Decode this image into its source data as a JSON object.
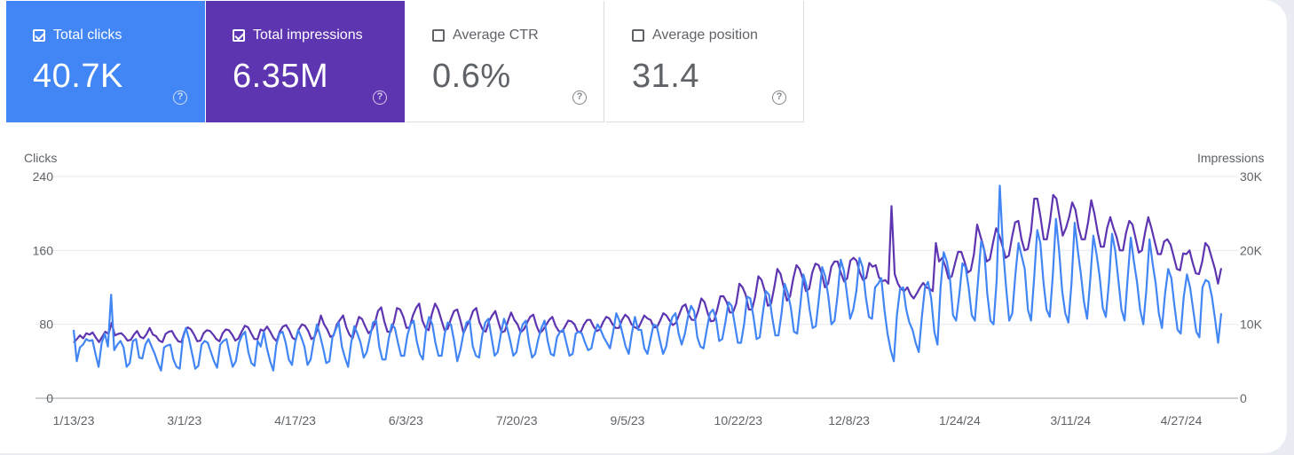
{
  "metrics": [
    {
      "label": "Total clicks",
      "value": "40.7K",
      "checked": true,
      "color": "#4285f4"
    },
    {
      "label": "Total impressions",
      "value": "6.35M",
      "checked": true,
      "color": "#5e35b1"
    },
    {
      "label": "Average CTR",
      "value": "0.6%",
      "checked": false,
      "color": "#ffffff"
    },
    {
      "label": "Average position",
      "value": "31.4",
      "checked": false,
      "color": "#ffffff"
    }
  ],
  "help_glyph": "?",
  "chart_data": {
    "type": "line",
    "x_start": "1/13/23",
    "x_end": "5/13/24",
    "x_tick_labels": [
      "1/13/23",
      "3/1/23",
      "4/17/23",
      "6/3/23",
      "7/20/23",
      "9/5/23",
      "10/22/23",
      "12/8/23",
      "1/24/24",
      "3/11/24",
      "4/27/24"
    ],
    "y_left_label": "Clicks",
    "y_left_ticks": [
      "0",
      "80",
      "160",
      "240"
    ],
    "y_left_range": [
      0,
      240
    ],
    "y_right_label": "Impressions",
    "y_right_ticks": [
      "0",
      "10K",
      "20K",
      "30K"
    ],
    "y_right_range": [
      0,
      30000
    ],
    "grid": true,
    "series": [
      {
        "name": "Clicks",
        "axis": "left",
        "color": "#4285f4",
        "values": [
          74,
          40,
          55,
          58,
          64,
          62,
          63,
          48,
          34,
          60,
          70,
          56,
          112,
          52,
          58,
          62,
          55,
          34,
          38,
          62,
          64,
          44,
          43,
          58,
          64,
          56,
          48,
          38,
          30,
          55,
          57,
          58,
          42,
          34,
          32,
          64,
          76,
          64,
          48,
          32,
          35,
          58,
          62,
          60,
          50,
          40,
          33,
          58,
          62,
          64,
          48,
          34,
          40,
          60,
          68,
          72,
          50,
          38,
          35,
          62,
          56,
          72,
          54,
          40,
          30,
          58,
          70,
          72,
          60,
          42,
          36,
          60,
          74,
          66,
          56,
          36,
          42,
          62,
          80,
          68,
          54,
          38,
          40,
          66,
          74,
          82,
          56,
          44,
          34,
          60,
          78,
          70,
          60,
          44,
          50,
          66,
          82,
          84,
          56,
          42,
          42,
          64,
          80,
          76,
          60,
          46,
          46,
          68,
          80,
          84,
          62,
          48,
          42,
          74,
          88,
          80,
          60,
          46,
          46,
          70,
          82,
          80,
          62,
          40,
          52,
          70,
          82,
          84,
          56,
          46,
          44,
          68,
          82,
          86,
          66,
          46,
          50,
          70,
          86,
          76,
          62,
          46,
          50,
          68,
          80,
          84,
          60,
          44,
          48,
          64,
          76,
          84,
          62,
          48,
          46,
          66,
          72,
          74,
          60,
          46,
          48,
          70,
          72,
          70,
          60,
          52,
          54,
          70,
          80,
          74,
          66,
          60,
          54,
          72,
          92,
          84,
          70,
          56,
          48,
          70,
          88,
          74,
          74,
          54,
          48,
          64,
          80,
          78,
          62,
          48,
          56,
          76,
          88,
          92,
          70,
          58,
          70,
          88,
          100,
          94,
          66,
          56,
          54,
          74,
          92,
          96,
          86,
          62,
          64,
          82,
          104,
          100,
          80,
          60,
          60,
          80,
          110,
          108,
          88,
          64,
          66,
          92,
          116,
          112,
          88,
          68,
          68,
          92,
          124,
          114,
          98,
          72,
          70,
          100,
          134,
          122,
          96,
          76,
          78,
          108,
          142,
          132,
          110,
          80,
          84,
          112,
          150,
          138,
          112,
          86,
          96,
          116,
          152,
          142,
          110,
          88,
          86,
          120,
          124,
          130,
          96,
          70,
          52,
          40,
          90,
          118,
          120,
          96,
          82,
          74,
          60,
          50,
          88,
          120,
          126,
          108,
          72,
          58,
          120,
          158,
          148,
          130,
          90,
          84,
          112,
          146,
          142,
          120,
          90,
          84,
          126,
          170,
          160,
          112,
          84,
          80,
          128,
          230,
          164,
          120,
          84,
          92,
          134,
          168,
          154,
          140,
          96,
          84,
          130,
          182,
          168,
          126,
          96,
          88,
          134,
          194,
          160,
          116,
          92,
          82,
          124,
          190,
          160,
          134,
          104,
          86,
          128,
          176,
          156,
          132,
          98,
          88,
          126,
          178,
          160,
          128,
          96,
          84,
          130,
          174,
          148,
          126,
          96,
          80,
          118,
          172,
          146,
          124,
          92,
          76,
          114,
          140,
          130,
          100,
          74,
          70,
          110,
          134,
          120,
          96,
          72,
          66,
          120,
          128,
          126,
          110,
          86,
          60,
          92
        ]
      },
      {
        "name": "Impressions",
        "axis": "right",
        "color": "#5e35b1",
        "values": [
          7500,
          8000,
          8500,
          8100,
          8800,
          8600,
          8900,
          8200,
          7600,
          8300,
          9000,
          8700,
          10200,
          8500,
          8700,
          8800,
          8400,
          7800,
          7900,
          8600,
          9100,
          8300,
          8100,
          8700,
          9500,
          8600,
          8400,
          7800,
          7600,
          8700,
          9000,
          9100,
          8300,
          7700,
          7600,
          9000,
          9600,
          9300,
          8600,
          7700,
          7800,
          8800,
          9200,
          9100,
          8600,
          8000,
          7700,
          8800,
          9300,
          9200,
          8600,
          7800,
          8100,
          9000,
          9800,
          9600,
          8800,
          8000,
          8000,
          9300,
          9100,
          9700,
          9000,
          8200,
          7700,
          9000,
          9700,
          9900,
          9200,
          8200,
          7900,
          9300,
          10000,
          9800,
          9100,
          8000,
          8300,
          9500,
          11200,
          10000,
          9300,
          8300,
          8500,
          10000,
          10600,
          11200,
          9600,
          8600,
          8100,
          9600,
          11000,
          10700,
          9700,
          8800,
          9200,
          10100,
          11800,
          12300,
          10400,
          9000,
          9000,
          10300,
          12200,
          12000,
          11000,
          9500,
          9600,
          11200,
          12200,
          12800,
          10500,
          9500,
          9200,
          11400,
          12800,
          12000,
          10600,
          9200,
          9400,
          10700,
          11800,
          12000,
          10500,
          8800,
          9800,
          10600,
          11800,
          12200,
          10300,
          9300,
          9000,
          10400,
          11200,
          11800,
          10300,
          8900,
          9100,
          10400,
          11600,
          10600,
          10000,
          8900,
          9300,
          10200,
          11000,
          11300,
          9800,
          8800,
          9200,
          9900,
          10600,
          11000,
          9800,
          9100,
          9000,
          9700,
          10500,
          10400,
          10000,
          9000,
          9000,
          10000,
          10600,
          10600,
          9700,
          9100,
          9300,
          10300,
          11000,
          10800,
          10000,
          9500,
          9500,
          10600,
          11300,
          10900,
          10000,
          9600,
          9400,
          10300,
          11200,
          10800,
          10600,
          9600,
          9600,
          10500,
          11500,
          11200,
          10500,
          9900,
          10200,
          11300,
          12400,
          12700,
          11300,
          10600,
          10600,
          11800,
          13500,
          13000,
          11500,
          10400,
          10500,
          12000,
          13800,
          13800,
          13000,
          11600,
          11600,
          12800,
          15500,
          15000,
          14000,
          12000,
          12000,
          13800,
          16500,
          16000,
          14500,
          12500,
          12800,
          15000,
          17500,
          16800,
          15000,
          13200,
          13800,
          16200,
          18000,
          17500,
          16200,
          14500,
          14800,
          17000,
          18200,
          18000,
          16800,
          15000,
          15500,
          17800,
          18500,
          18500,
          17000,
          15800,
          16200,
          18600,
          19000,
          18600,
          17000,
          16000,
          16300,
          18300,
          17800,
          18000,
          16400,
          15800,
          16000,
          15500,
          26000,
          16800,
          15500,
          14800,
          14500,
          15000,
          14000,
          13500,
          14200,
          15000,
          15600,
          15000,
          14800,
          14500,
          21000,
          18500,
          19000,
          17800,
          16200,
          16500,
          18200,
          19800,
          19800,
          18500,
          17000,
          17300,
          19500,
          23500,
          22000,
          20500,
          18500,
          18800,
          21000,
          23000,
          22000,
          20600,
          19000,
          19300,
          21800,
          23800,
          24000,
          21500,
          20000,
          20200,
          22500,
          27000,
          27000,
          24500,
          21500,
          21500,
          24000,
          27500,
          27000,
          24500,
          22000,
          23000,
          24500,
          26500,
          25500,
          23000,
          21500,
          21500,
          23800,
          26800,
          25000,
          22500,
          20500,
          20500,
          23000,
          24500,
          23000,
          21800,
          20000,
          20000,
          22400,
          24000,
          23500,
          21600,
          19700,
          20000,
          22500,
          24500,
          23000,
          21200,
          19500,
          19500,
          21200,
          21500,
          20800,
          19200,
          17500,
          17300,
          19600,
          19500,
          20000,
          18300,
          16900,
          16800,
          18500,
          21000,
          20500,
          19000,
          17500,
          15500,
          17600
        ]
      }
    ]
  }
}
